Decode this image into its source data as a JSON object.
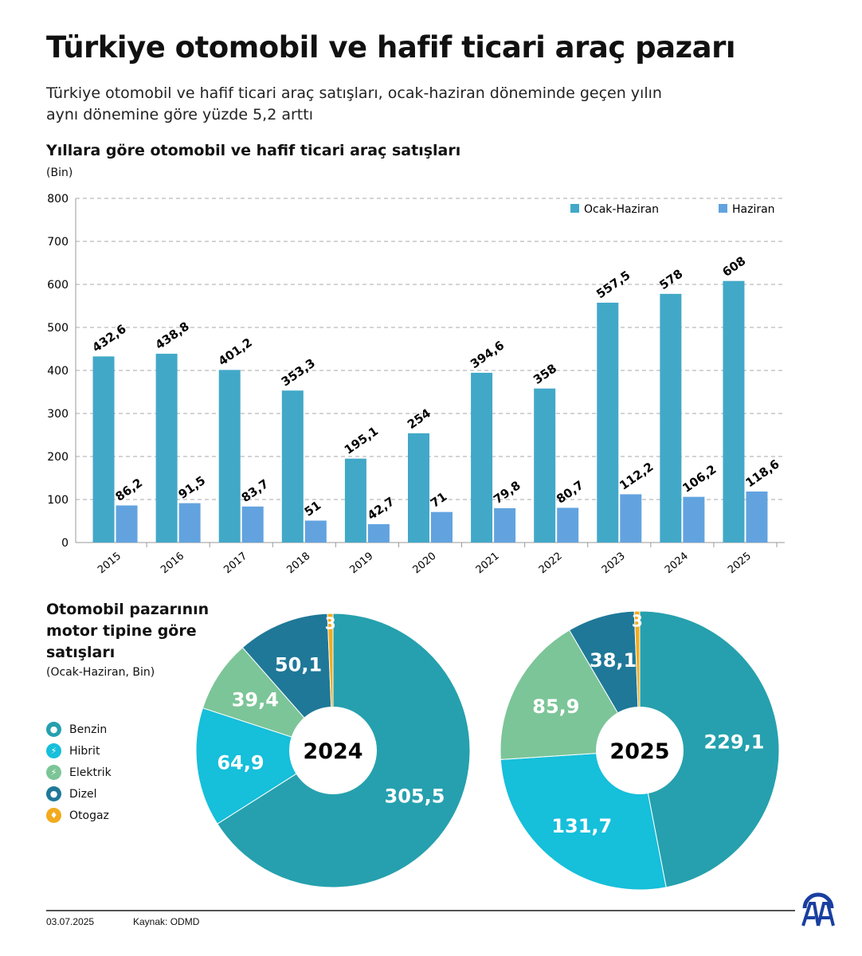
{
  "title": "Türkiye otomobil ve hafif ticari araç pazarı",
  "subtitle": "Türkiye otomobil ve hafif ticari araç satışları, ocak-haziran döneminde geçen yılın aynı dönemine göre yüzde 5,2 arttı",
  "footer": {
    "date": "03.07.2025",
    "source": "Kaynak: ODMD",
    "logo": "AA"
  },
  "chart_data": [
    {
      "type": "bar",
      "title": "Yıllara göre otomobil ve hafif ticari araç satışları",
      "unit": "(Bin)",
      "ylim": [
        0,
        800
      ],
      "yticks": [
        0,
        100,
        200,
        300,
        400,
        500,
        600,
        700,
        800
      ],
      "grid": true,
      "legend": "top-right",
      "categories": [
        "2015",
        "2016",
        "2017",
        "2018",
        "2019",
        "2020",
        "2021",
        "2022",
        "2023",
        "2024",
        "2025"
      ],
      "series": [
        {
          "name": "Ocak-Haziran",
          "color": "#42a8c8",
          "values": [
            432.6,
            438.8,
            401.2,
            353.3,
            195.1,
            254,
            394.6,
            358,
            557.5,
            578,
            608
          ],
          "labels": [
            "432,6",
            "438,8",
            "401,2",
            "353,3",
            "195,1",
            "254",
            "394,6",
            "358",
            "557,5",
            "578",
            "608"
          ]
        },
        {
          "name": "Haziran",
          "color": "#62a3df",
          "values": [
            86.2,
            91.5,
            83.7,
            51,
            42.7,
            71,
            79.8,
            80.7,
            112.2,
            106.2,
            118.6
          ],
          "labels": [
            "86,2",
            "91,5",
            "83,7",
            "51",
            "42,7",
            "71",
            "79,8",
            "80,7",
            "112,2",
            "106,2",
            "118,6"
          ]
        }
      ]
    },
    {
      "type": "pie",
      "title": "Otomobil pazarının motor tipine göre satışları",
      "subtitle": "(Ocak-Haziran, Bin)",
      "legend": "left",
      "categories": [
        {
          "name": "Benzin",
          "color": "#26a0ae",
          "icon": "drop-icon"
        },
        {
          "name": "Hibrit",
          "color": "#16bfda",
          "icon": "hybrid-icon"
        },
        {
          "name": "Elektrik",
          "color": "#7cc598",
          "icon": "lightning-icon"
        },
        {
          "name": "Dizel",
          "color": "#1f7898",
          "icon": "drop-icon"
        },
        {
          "name": "Otogaz",
          "color": "#f2ab1e",
          "icon": "flame-icon"
        }
      ],
      "pies": [
        {
          "label": "2024",
          "values": [
            305.5,
            64.9,
            39.4,
            50.1,
            3
          ],
          "labels": [
            "305,5",
            "64,9",
            "39,4",
            "50,1",
            "3"
          ]
        },
        {
          "label": "2025",
          "values": [
            229.1,
            131.7,
            85.9,
            38.1,
            3
          ],
          "labels": [
            "229,1",
            "131,7",
            "85,9",
            "38,1",
            "3"
          ]
        }
      ]
    }
  ]
}
